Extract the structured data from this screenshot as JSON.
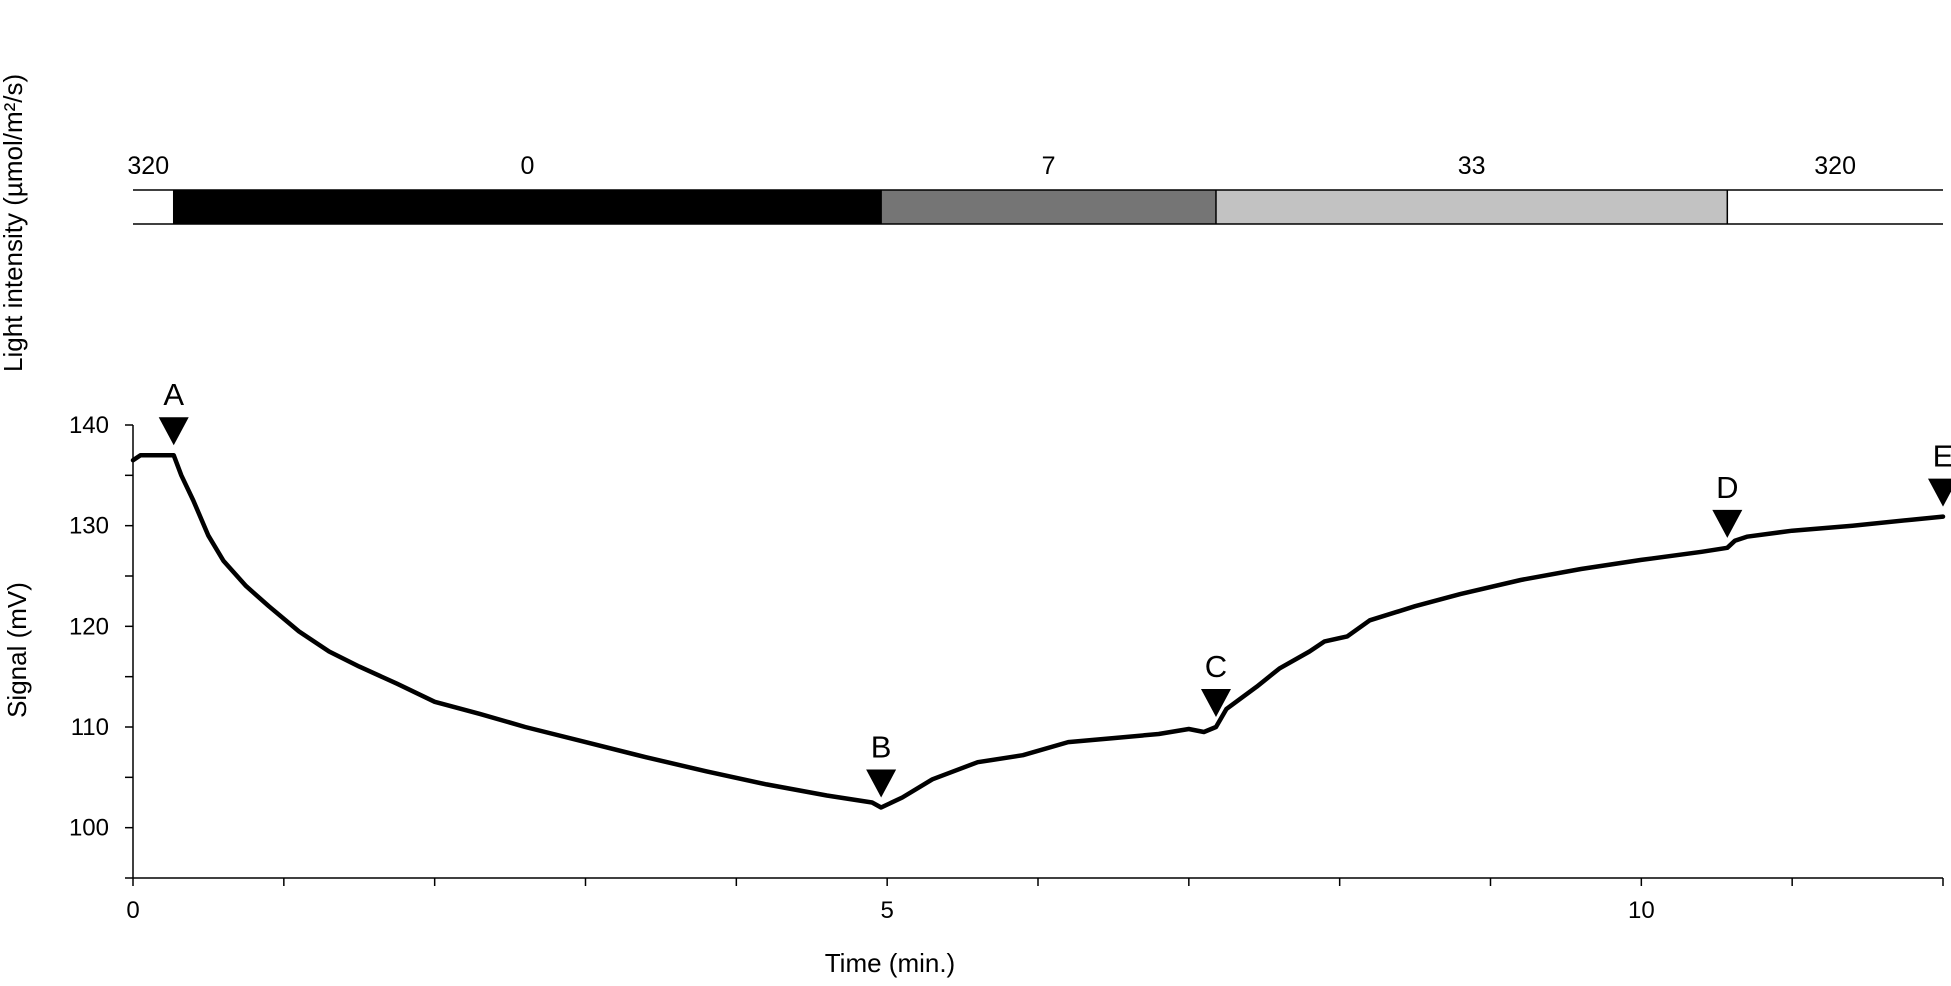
{
  "chart_data": {
    "type": "line",
    "light_bar": {
      "axis_label": "Light intensity (µmol/m²/s)",
      "segments": [
        {
          "label": "320",
          "start": -0.2,
          "end": 0.27,
          "color": "#ffffff"
        },
        {
          "label": "0",
          "start": 0.27,
          "end": 4.96,
          "color": "#000000"
        },
        {
          "label": "7",
          "start": 4.96,
          "end": 7.18,
          "color": "#757575"
        },
        {
          "label": "33",
          "start": 7.18,
          "end": 10.57,
          "color": "#c2c2c2"
        },
        {
          "label": "320",
          "start": 10.57,
          "end": 12.0,
          "color": "#ffffff"
        }
      ]
    },
    "xlabel": "Time (min.)",
    "ylabel": "Signal (mV)",
    "xlim": [
      0,
      12
    ],
    "ylim": [
      95,
      140
    ],
    "x_ticks": [
      0,
      5,
      10
    ],
    "x_minor_step": 1,
    "y_ticks": [
      100,
      110,
      120,
      130,
      140
    ],
    "y_minor_step": 5,
    "series": [
      {
        "color": "#000000",
        "x": [
          0.0,
          0.05,
          0.27,
          0.32,
          0.4,
          0.5,
          0.6,
          0.75,
          0.9,
          1.1,
          1.3,
          1.5,
          1.75,
          2.0,
          2.3,
          2.6,
          3.0,
          3.4,
          3.8,
          4.2,
          4.6,
          4.9,
          4.96,
          5.1,
          5.3,
          5.6,
          5.9,
          6.2,
          6.5,
          6.8,
          7.0,
          7.1,
          7.18,
          7.25,
          7.45,
          7.6,
          7.8,
          7.9,
          8.05,
          8.2,
          8.5,
          8.8,
          9.2,
          9.6,
          10.0,
          10.4,
          10.57,
          10.62,
          10.7,
          11.0,
          11.4,
          11.8,
          12.0
        ],
        "y": [
          136.5,
          137.0,
          137.0,
          135.0,
          132.5,
          129.0,
          126.5,
          124.0,
          122.0,
          119.5,
          117.5,
          116.0,
          114.3,
          112.5,
          111.3,
          110.0,
          108.5,
          107.0,
          105.6,
          104.3,
          103.2,
          102.5,
          102.0,
          103.0,
          104.8,
          106.5,
          107.2,
          108.5,
          108.9,
          109.3,
          109.8,
          109.5,
          110.0,
          111.8,
          114.0,
          115.8,
          117.5,
          118.5,
          119.0,
          120.6,
          122.0,
          123.2,
          124.6,
          125.7,
          126.6,
          127.4,
          127.8,
          128.5,
          128.9,
          129.5,
          130.0,
          130.6,
          130.9
        ]
      }
    ],
    "markers": [
      {
        "label": "A",
        "x": 0.27,
        "y": 137.0
      },
      {
        "label": "B",
        "x": 4.96,
        "y": 102.0
      },
      {
        "label": "C",
        "x": 7.18,
        "y": 110.0
      },
      {
        "label": "D",
        "x": 10.57,
        "y": 127.8
      },
      {
        "label": "E",
        "x": 12.0,
        "y": 130.9
      }
    ]
  }
}
